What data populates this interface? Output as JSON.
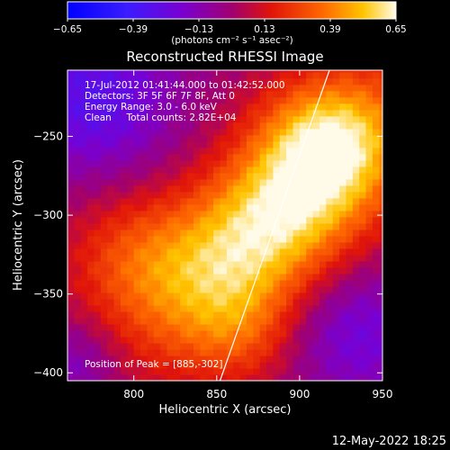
{
  "chart_data": {
    "type": "heatmap",
    "title": "Reconstructed RHESSI Image",
    "xlabel": "Heliocentric X (arcsec)",
    "ylabel": "Heliocentric Y (arcsec)",
    "xlim": [
      760,
      950
    ],
    "ylim": [
      -405,
      -208
    ],
    "x_ticks": [
      800,
      850,
      900,
      950
    ],
    "x_tick_labels": [
      "800",
      "850",
      "900",
      "950"
    ],
    "y_ticks": [
      -250,
      -300,
      -350,
      -400
    ],
    "y_tick_labels": [
      "−250",
      "−300",
      "−350",
      "−400"
    ],
    "colorbar": {
      "range": [
        -0.65,
        0.65
      ],
      "ticks": [
        -0.65,
        -0.39,
        -0.13,
        0.13,
        0.39,
        0.65
      ],
      "tick_labels": [
        "−0.65",
        "−0.39",
        "−0.13",
        "0.13",
        "0.39",
        "0.65"
      ],
      "unit_label": "(photons cm⁻² s⁻¹ asec⁻²)"
    },
    "annotations": [
      "17-Jul-2012 01:41:44.000 to 01:42:52.000",
      "Detectors: 3F 5F 6F 7F 8F, Att 0",
      "Energy Range: 3.0 - 6.0 keV",
      "Clean     Total counts: 2.82E+04"
    ],
    "peak_label": "Position of Peak = [885,-302]",
    "peak": [
      885,
      -302
    ],
    "peak_value": 0.65,
    "limb_line": {
      "x1": 852,
      "y1": -405,
      "x2": 918,
      "y2": -208
    },
    "colors": {
      "background": "#000000",
      "limb_line": "#ffffff"
    }
  },
  "footer": {
    "timestamp": "12-May-2022 18:25"
  }
}
